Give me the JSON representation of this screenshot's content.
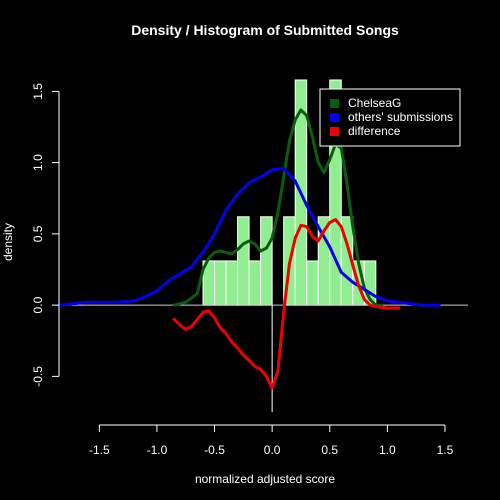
{
  "chart_data": {
    "type": "histogram+density",
    "title": "Density / Histogram of Submitted Songs",
    "xlabel": "normalized adjusted score",
    "ylabel": "density",
    "xlim": [
      -1.85,
      1.7
    ],
    "ylim": [
      -0.75,
      1.65
    ],
    "xticks": [
      -1.5,
      -1.0,
      -0.5,
      0.0,
      0.5,
      1.0,
      1.5
    ],
    "xtick_labels": [
      "-1.5",
      "-1.0",
      "-0.5",
      "0.0",
      "0.5",
      "1.0",
      "1.5"
    ],
    "yticks": [
      -0.5,
      0.0,
      0.5,
      1.0,
      1.5
    ],
    "ytick_labels": [
      "-0.5",
      "0.0",
      "0.5",
      "1.0",
      "1.5"
    ],
    "reference_lines": {
      "horizontal_y": 0.0,
      "vertical_x": 0.0
    },
    "histogram": {
      "color": "#90ee90",
      "bin_width": 0.1,
      "bins": [
        {
          "start": -0.6,
          "end": -0.5,
          "value": 0.31
        },
        {
          "start": -0.5,
          "end": -0.4,
          "value": 0.31
        },
        {
          "start": -0.4,
          "end": -0.3,
          "value": 0.31
        },
        {
          "start": -0.3,
          "end": -0.2,
          "value": 0.62
        },
        {
          "start": -0.2,
          "end": -0.1,
          "value": 0.31
        },
        {
          "start": -0.1,
          "end": 0.0,
          "value": 0.62
        },
        {
          "start": 0.1,
          "end": 0.2,
          "value": 0.62
        },
        {
          "start": 0.2,
          "end": 0.3,
          "value": 1.58
        },
        {
          "start": 0.3,
          "end": 0.4,
          "value": 0.31
        },
        {
          "start": 0.4,
          "end": 0.5,
          "value": 0.62
        },
        {
          "start": 0.5,
          "end": 0.6,
          "value": 1.58
        },
        {
          "start": 0.6,
          "end": 0.7,
          "value": 0.62
        },
        {
          "start": 0.7,
          "end": 0.8,
          "value": 0.31
        },
        {
          "start": 0.8,
          "end": 0.9,
          "value": 0.31
        }
      ]
    },
    "series": [
      {
        "name": "ChelseaG",
        "color": "#0b5d0b",
        "x": [
          -0.85,
          -0.75,
          -0.65,
          -0.6,
          -0.55,
          -0.5,
          -0.45,
          -0.4,
          -0.35,
          -0.3,
          -0.25,
          -0.2,
          -0.15,
          -0.1,
          -0.05,
          0.0,
          0.05,
          0.1,
          0.15,
          0.2,
          0.25,
          0.3,
          0.35,
          0.4,
          0.45,
          0.5,
          0.55,
          0.6,
          0.65,
          0.7,
          0.75,
          0.8,
          0.85,
          0.9,
          0.95
        ],
        "y": [
          0.0,
          0.02,
          0.08,
          0.25,
          0.33,
          0.37,
          0.38,
          0.37,
          0.36,
          0.39,
          0.43,
          0.45,
          0.43,
          0.38,
          0.4,
          0.47,
          0.65,
          0.9,
          1.15,
          1.3,
          1.37,
          1.33,
          1.18,
          1.0,
          0.93,
          1.02,
          1.13,
          1.1,
          0.85,
          0.55,
          0.3,
          0.12,
          0.04,
          0.0,
          0.0
        ]
      },
      {
        "name": "others' submissions",
        "color": "#0000ee",
        "x": [
          -1.85,
          -1.6,
          -1.5,
          -1.35,
          -1.2,
          -1.1,
          -1.0,
          -0.9,
          -0.8,
          -0.7,
          -0.6,
          -0.5,
          -0.4,
          -0.3,
          -0.2,
          -0.1,
          0.0,
          0.1,
          0.2,
          0.3,
          0.4,
          0.5,
          0.6,
          0.7,
          0.8,
          0.9,
          1.0,
          1.1,
          1.3,
          1.45
        ],
        "y": [
          0.0,
          0.02,
          0.02,
          0.02,
          0.03,
          0.06,
          0.1,
          0.17,
          0.22,
          0.27,
          0.37,
          0.5,
          0.67,
          0.78,
          0.86,
          0.9,
          0.95,
          0.96,
          0.87,
          0.7,
          0.55,
          0.41,
          0.23,
          0.16,
          0.11,
          0.06,
          0.03,
          0.02,
          0.0,
          0.0
        ]
      },
      {
        "name": "difference",
        "color": "#ee0000",
        "x": [
          -0.85,
          -0.8,
          -0.75,
          -0.7,
          -0.65,
          -0.6,
          -0.55,
          -0.5,
          -0.45,
          -0.4,
          -0.35,
          -0.3,
          -0.25,
          -0.2,
          -0.15,
          -0.1,
          -0.05,
          0.0,
          0.05,
          0.1,
          0.15,
          0.2,
          0.25,
          0.3,
          0.35,
          0.4,
          0.45,
          0.5,
          0.55,
          0.6,
          0.65,
          0.7,
          0.75,
          0.8,
          0.85,
          0.9,
          1.0,
          1.1
        ],
        "y": [
          -0.1,
          -0.14,
          -0.17,
          -0.15,
          -0.1,
          -0.05,
          -0.04,
          -0.09,
          -0.16,
          -0.2,
          -0.26,
          -0.3,
          -0.35,
          -0.39,
          -0.43,
          -0.45,
          -0.5,
          -0.58,
          -0.46,
          -0.05,
          0.29,
          0.47,
          0.56,
          0.55,
          0.48,
          0.45,
          0.52,
          0.58,
          0.6,
          0.55,
          0.43,
          0.28,
          0.14,
          0.04,
          0.0,
          -0.01,
          -0.02,
          -0.02
        ]
      }
    ],
    "legend": {
      "position": "top-right",
      "entries": [
        {
          "label": "ChelseaG",
          "color": "#0b5d0b"
        },
        {
          "label": "others' submissions",
          "color": "#0000ee"
        },
        {
          "label": "difference",
          "color": "#ee0000"
        }
      ]
    }
  }
}
